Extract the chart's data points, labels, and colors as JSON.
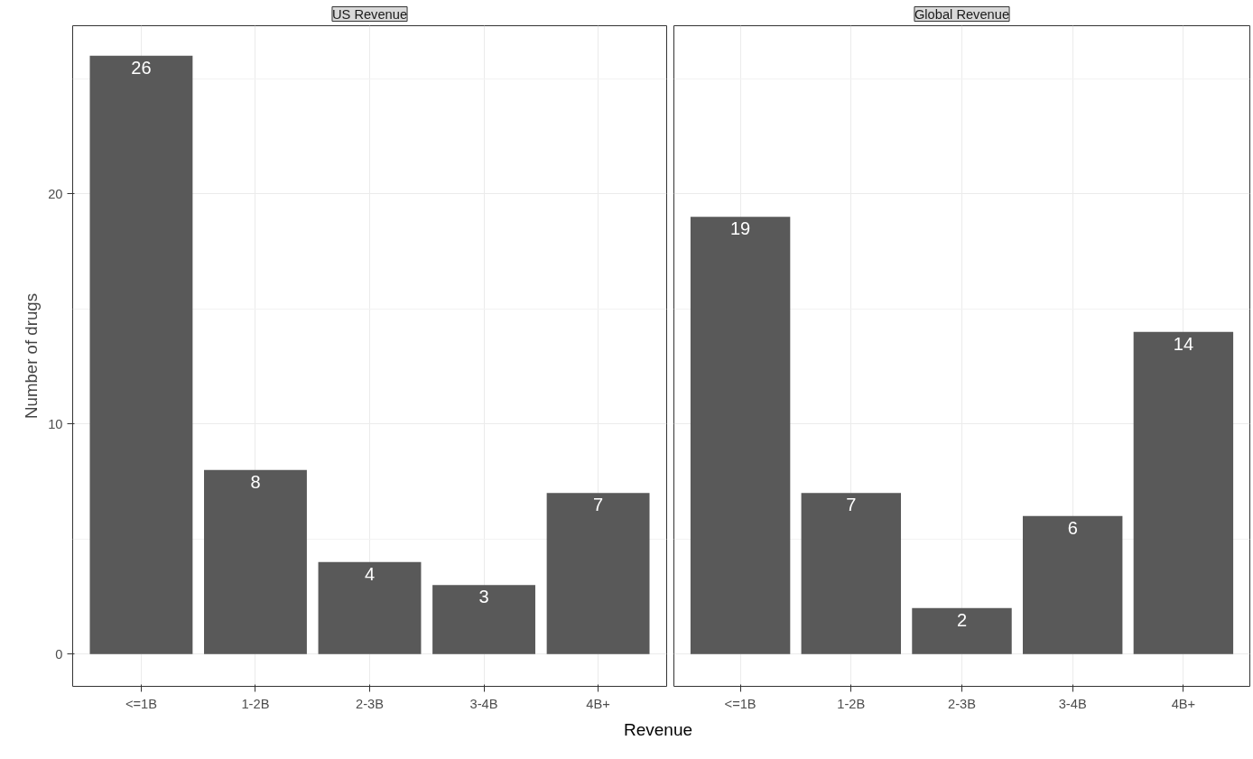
{
  "chart_data": [
    {
      "type": "bar",
      "title": "US Revenue",
      "xlabel": "Revenue",
      "ylabel": "Number of drugs",
      "categories": [
        "<=1B",
        "1-2B",
        "2-3B",
        "3-4B",
        "4B+"
      ],
      "values": [
        26,
        8,
        4,
        3,
        7
      ],
      "color": "#595959",
      "data_labels": true,
      "ylim": [
        -1.4,
        27.3
      ],
      "yticks": [
        0,
        {
          "value": 5,
          "label": null
        },
        10,
        {
          "value": 15,
          "label": null
        },
        20,
        {
          "value": 25,
          "label": null
        }
      ],
      "grid": true
    },
    {
      "type": "bar",
      "title": "Global Revenue",
      "categories": [
        "<=1B",
        "1-2B",
        "2-3B",
        "3-4B",
        "4B+"
      ],
      "values": [
        19,
        7,
        2,
        6,
        14
      ],
      "color": "#595959",
      "data_labels": true,
      "ylim": [
        -1.4,
        27.3
      ],
      "yticks": [
        0,
        {
          "value": 5,
          "label": null
        },
        10,
        {
          "value": 15,
          "label": null
        },
        20,
        {
          "value": 25,
          "label": null
        }
      ],
      "grid": true,
      "tick_labels": "x"
    }
  ]
}
